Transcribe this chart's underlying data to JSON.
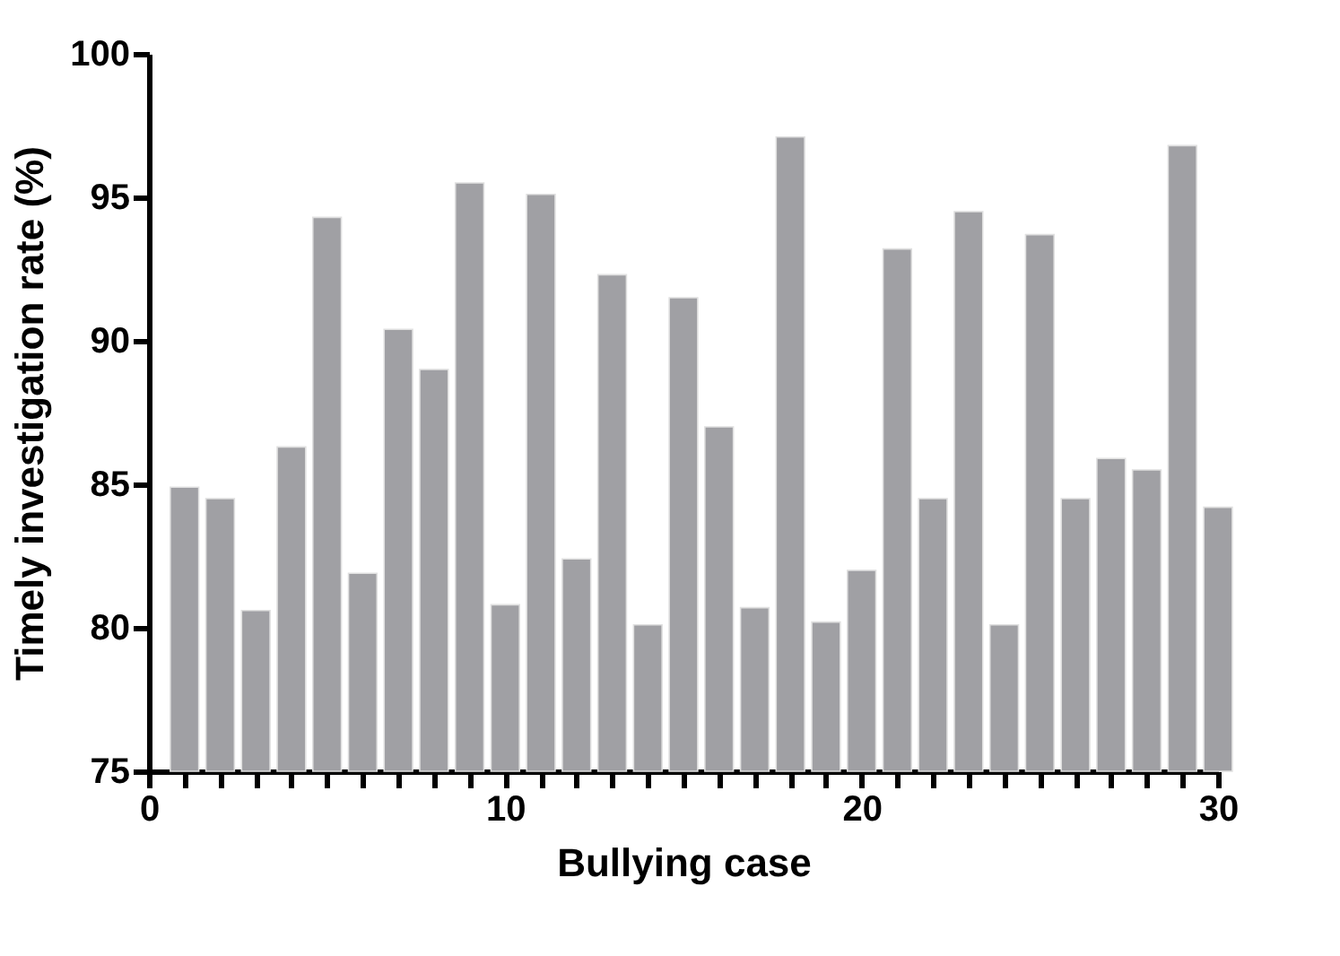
{
  "chart_data": {
    "type": "bar",
    "xlabel": "Bullying case",
    "ylabel": "Timely investigation rate (%)",
    "x": [
      1,
      2,
      3,
      4,
      5,
      6,
      7,
      8,
      9,
      10,
      11,
      12,
      13,
      14,
      15,
      16,
      17,
      18,
      19,
      20,
      21,
      22,
      23,
      24,
      25,
      26,
      27,
      28,
      29,
      30
    ],
    "values": [
      84.9,
      84.5,
      80.6,
      86.3,
      94.3,
      81.9,
      90.4,
      89.0,
      95.5,
      80.8,
      95.1,
      82.4,
      92.3,
      80.1,
      91.5,
      87.0,
      80.7,
      97.1,
      80.2,
      82.0,
      93.2,
      84.5,
      94.5,
      80.1,
      93.7,
      84.5,
      85.9,
      85.5,
      96.8,
      84.2
    ],
    "color": "#a0a0a4",
    "xlim": [
      0,
      30
    ],
    "xticks": [
      0,
      {
        "value": 1,
        "label": null
      },
      {
        "value": 2,
        "label": null
      },
      {
        "value": 3,
        "label": null
      },
      {
        "value": 4,
        "label": null
      },
      {
        "value": 5,
        "label": null
      },
      {
        "value": 6,
        "label": null
      },
      {
        "value": 7,
        "label": null
      },
      {
        "value": 8,
        "label": null
      },
      {
        "value": 9,
        "label": null
      },
      10,
      {
        "value": 11,
        "label": null
      },
      {
        "value": 12,
        "label": null
      },
      {
        "value": 13,
        "label": null
      },
      {
        "value": 14,
        "label": null
      },
      {
        "value": 15,
        "label": null
      },
      {
        "value": 16,
        "label": null
      },
      {
        "value": 17,
        "label": null
      },
      {
        "value": 18,
        "label": null
      },
      {
        "value": 19,
        "label": null
      },
      20,
      {
        "value": 21,
        "label": null
      },
      {
        "value": 22,
        "label": null
      },
      {
        "value": 23,
        "label": null
      },
      {
        "value": 24,
        "label": null
      },
      {
        "value": 25,
        "label": null
      },
      {
        "value": 26,
        "label": null
      },
      {
        "value": 27,
        "label": null
      },
      {
        "value": 28,
        "label": null
      },
      {
        "value": 29,
        "label": null
      },
      30
    ],
    "ylim": [
      75,
      100
    ],
    "yticks": [
      75,
      80,
      85,
      90,
      95,
      100
    ],
    "grid": false
  }
}
